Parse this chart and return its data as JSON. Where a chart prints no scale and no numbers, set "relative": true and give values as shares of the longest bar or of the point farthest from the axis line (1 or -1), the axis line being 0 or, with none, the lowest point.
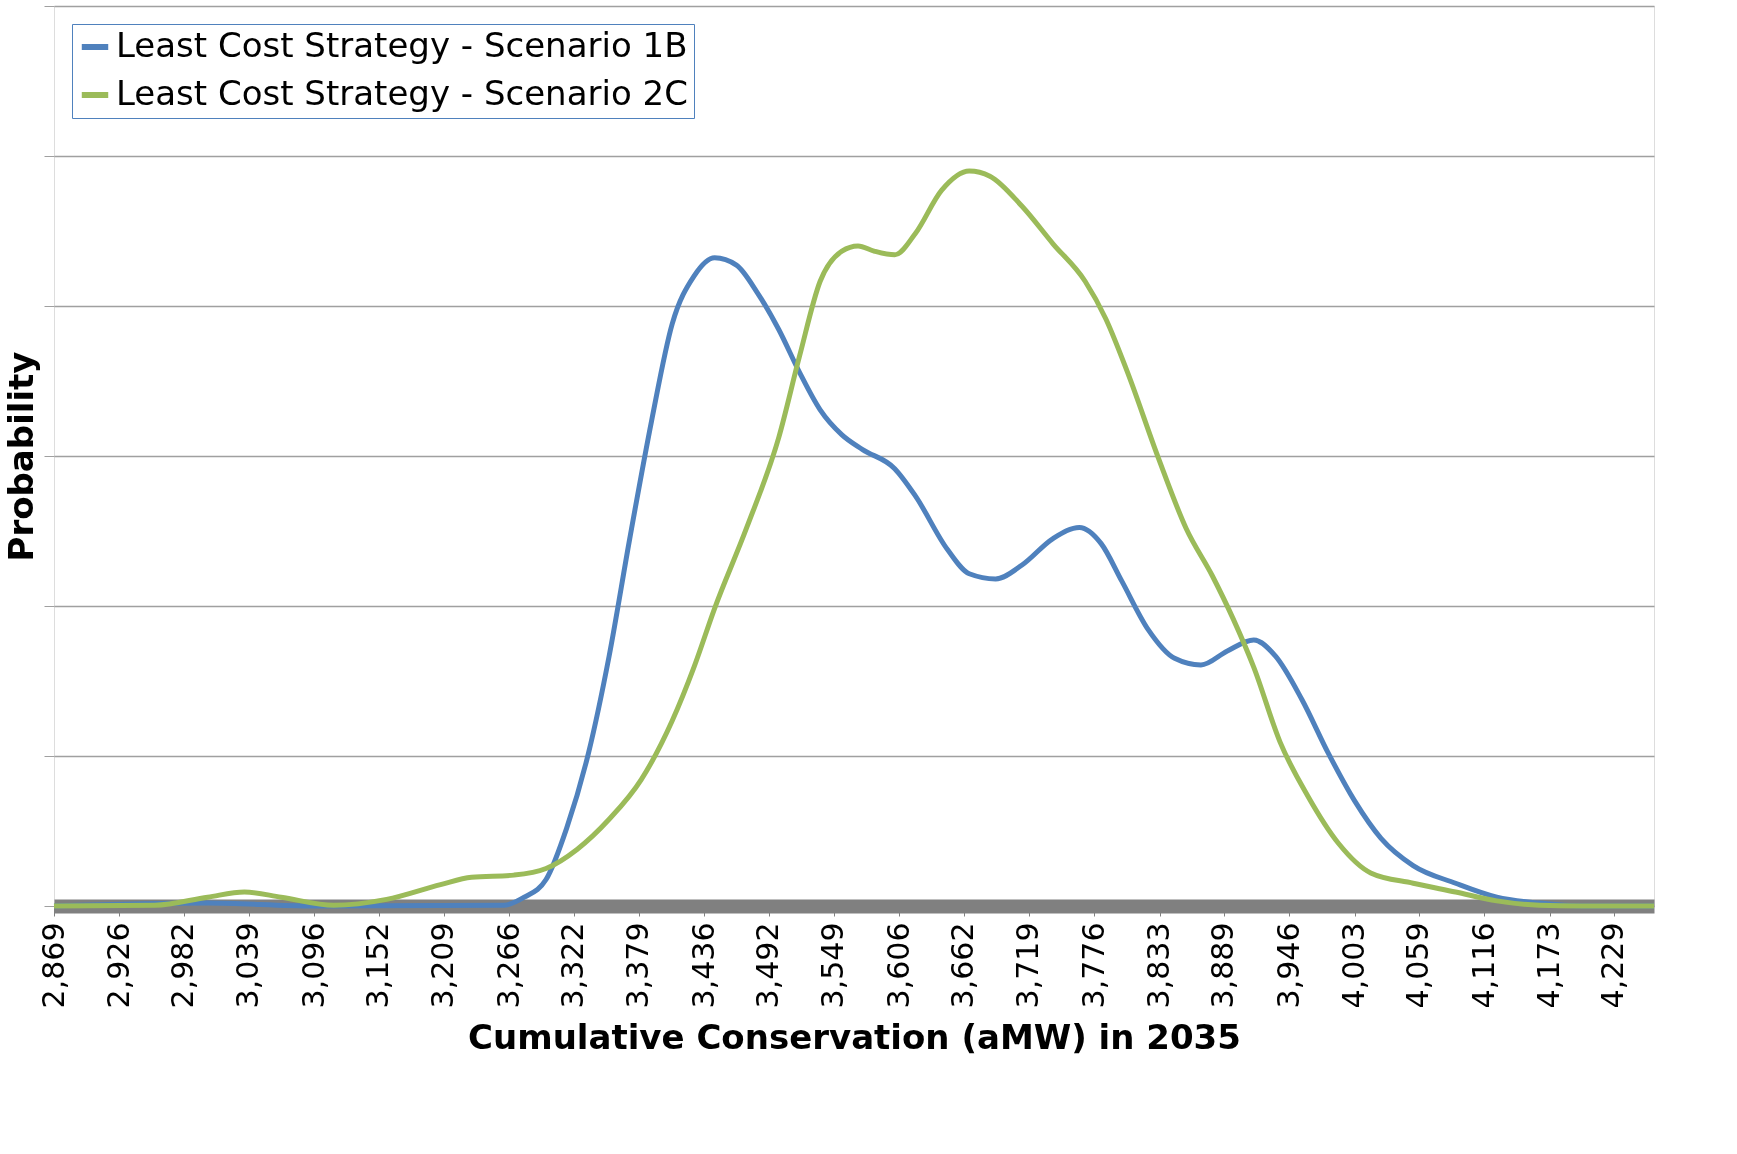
{
  "chart_data": {
    "type": "line",
    "xlabel": "Cumulative Conservation (aMW) in 2035",
    "ylabel": "Probability",
    "relative": true,
    "grid": "y",
    "legend": "top left",
    "line_style": "solid",
    "marker": "none",
    "xlim": [
      2869,
      4264
    ],
    "xticks": [
      {
        "value": 2869,
        "label": "2,869"
      },
      {
        "value": 2926,
        "label": "2,926"
      },
      {
        "value": 2982,
        "label": "2,982"
      },
      {
        "value": 3039,
        "label": "3,039"
      },
      {
        "value": 3096,
        "label": "3,096"
      },
      {
        "value": 3152,
        "label": "3,152"
      },
      {
        "value": 3209,
        "label": "3,209"
      },
      {
        "value": 3266,
        "label": "3,266"
      },
      {
        "value": 3322,
        "label": "3,322"
      },
      {
        "value": 3379,
        "label": "3,379"
      },
      {
        "value": 3436,
        "label": "3,436"
      },
      {
        "value": 3492,
        "label": "3,492"
      },
      {
        "value": 3549,
        "label": "3,549"
      },
      {
        "value": 3606,
        "label": "3,606"
      },
      {
        "value": 3662,
        "label": "3,662"
      },
      {
        "value": 3719,
        "label": "3,719"
      },
      {
        "value": 3776,
        "label": "3,776"
      },
      {
        "value": 3833,
        "label": "3,833"
      },
      {
        "value": 3889,
        "label": "3,889"
      },
      {
        "value": 3946,
        "label": "3,946"
      },
      {
        "value": 4003,
        "label": "4,003"
      },
      {
        "value": 4059,
        "label": "4,059"
      },
      {
        "value": 4116,
        "label": "4,116"
      },
      {
        "value": 4173,
        "label": "4,173"
      },
      {
        "value": 4229,
        "label": "4,229"
      }
    ],
    "series": [
      {
        "name": "Least Cost Strategy - Scenario 1B",
        "color": "#4f81bd",
        "x": [
          2869,
          3003,
          3095,
          3261,
          3279,
          3298,
          3316,
          3335,
          3353,
          3371,
          3390,
          3408,
          3427,
          3445,
          3464,
          3482,
          3501,
          3519,
          3537,
          3556,
          3574,
          3602,
          3620,
          3648,
          3667,
          3690,
          3713,
          3740,
          3763,
          3782,
          3800,
          3823,
          3846,
          3869,
          3892,
          3915,
          3934,
          3957,
          3980,
          4003,
          4026,
          4054,
          4091,
          4127,
          4164,
          4201,
          4264
        ],
        "values": [
          0,
          0.004,
          0,
          0.001,
          0.012,
          0.036,
          0.106,
          0.208,
          0.34,
          0.5,
          0.66,
          0.792,
          0.857,
          0.882,
          0.872,
          0.835,
          0.784,
          0.726,
          0.675,
          0.641,
          0.621,
          0.595,
          0.558,
          0.485,
          0.452,
          0.445,
          0.464,
          0.5,
          0.515,
          0.493,
          0.442,
          0.376,
          0.337,
          0.328,
          0.347,
          0.362,
          0.34,
          0.281,
          0.208,
          0.143,
          0.092,
          0.055,
          0.031,
          0.012,
          0.004,
          0,
          0
        ]
      },
      {
        "name": "Least Cost Strategy - Scenario 2C",
        "color": "#9bbb59",
        "x": [
          2869,
          2957,
          3003,
          3035,
          3067,
          3113,
          3159,
          3206,
          3233,
          3270,
          3298,
          3325,
          3353,
          3381,
          3408,
          3427,
          3445,
          3473,
          3501,
          3519,
          3537,
          3556,
          3570,
          3584,
          3602,
          3620,
          3643,
          3667,
          3685,
          3713,
          3740,
          3768,
          3786,
          3805,
          3832,
          3856,
          3879,
          3897,
          3915,
          3938,
          3962,
          3989,
          4017,
          4054,
          4091,
          4127,
          4164,
          4201,
          4264
        ],
        "values": [
          0,
          0.001,
          0.012,
          0.019,
          0.012,
          0.001,
          0.009,
          0.029,
          0.039,
          0.042,
          0.051,
          0.077,
          0.118,
          0.172,
          0.252,
          0.325,
          0.405,
          0.515,
          0.638,
          0.748,
          0.85,
          0.891,
          0.898,
          0.891,
          0.886,
          0.915,
          0.974,
          1,
          0.993,
          0.952,
          0.901,
          0.85,
          0.799,
          0.726,
          0.609,
          0.514,
          0.449,
          0.391,
          0.325,
          0.223,
          0.15,
          0.085,
          0.045,
          0.031,
          0.019,
          0.007,
          0.001,
          0,
          0
        ]
      }
    ]
  }
}
